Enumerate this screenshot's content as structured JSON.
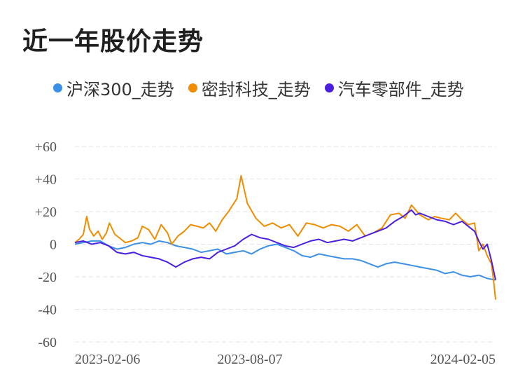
{
  "title": "近一年股价走势",
  "chart_data": {
    "type": "line",
    "title": "近一年股价走势",
    "xlabel": "",
    "ylabel": "",
    "ylim": [
      -60,
      60
    ],
    "yticks": [
      60,
      40,
      20,
      0,
      -20,
      -40,
      -60
    ],
    "ytick_labels": [
      "+60",
      "+40",
      "+20",
      "0",
      "-20",
      "-40",
      "-60"
    ],
    "xlim": [
      0,
      100
    ],
    "xtick_positions": [
      0,
      41.6,
      100
    ],
    "xtick_labels": [
      "2023-02-06",
      "2023-08-07",
      "2024-02-05"
    ],
    "grid": true,
    "legend_position": "top",
    "series": [
      {
        "name": "沪深300_走势",
        "color": "#3b8fe6",
        "x": [
          0,
          2,
          4,
          6,
          8,
          10,
          12,
          14,
          16,
          18,
          20,
          22,
          24,
          26,
          28,
          30,
          32,
          34,
          36,
          38,
          40,
          42,
          44,
          46,
          48,
          50,
          52,
          54,
          56,
          58,
          60,
          62,
          64,
          66,
          68,
          70,
          72,
          74,
          76,
          78,
          80,
          82,
          84,
          86,
          88,
          90,
          92,
          94,
          96,
          98,
          100
        ],
        "y": [
          0,
          1,
          2,
          2,
          -1,
          -3,
          -2,
          0,
          1,
          0,
          2,
          1,
          -1,
          -2,
          -3,
          -5,
          -4,
          -3,
          -6,
          -5,
          -4,
          -6,
          -3,
          -1,
          0,
          -2,
          -4,
          -7,
          -8,
          -6,
          -7,
          -8,
          -9,
          -9,
          -10,
          -12,
          -14,
          -12,
          -11,
          -12,
          -13,
          -14,
          -15,
          -16,
          -18,
          -17,
          -19,
          -20,
          -19,
          -21,
          -22
        ]
      },
      {
        "name": "密封科技_走势",
        "color": "#f08c00",
        "x": [
          0,
          1,
          2,
          2.8,
          3.5,
          4.5,
          5.5,
          6.5,
          7.5,
          8.2,
          9.5,
          11,
          12,
          13.5,
          15,
          16,
          17.5,
          19,
          20.5,
          22,
          23,
          24.5,
          26,
          27.5,
          29,
          30.5,
          32,
          33.5,
          35,
          36.5,
          37.5,
          38.5,
          39.5,
          41,
          43,
          45,
          47,
          49,
          51,
          53,
          55,
          57,
          59,
          61,
          63,
          65,
          67,
          69,
          71,
          73,
          75,
          77,
          78.5,
          80,
          82,
          84,
          85.5,
          87,
          89,
          90.5,
          92,
          93.5,
          95,
          96,
          97,
          98,
          99,
          99.5,
          100
        ],
        "y": [
          1,
          3,
          6,
          17,
          9,
          5,
          8,
          3,
          7,
          13,
          6,
          3,
          1,
          2,
          4,
          11,
          9,
          3,
          12,
          7,
          0,
          5,
          8,
          12,
          11,
          10,
          13,
          8,
          15,
          20,
          24,
          28,
          42,
          25,
          16,
          11,
          13,
          10,
          12,
          5,
          13,
          12,
          10,
          12,
          11,
          8,
          12,
          5,
          7,
          10,
          18,
          19,
          16,
          24,
          18,
          15,
          17,
          16,
          15,
          19,
          15,
          12,
          13,
          -4,
          0,
          -7,
          -12,
          -22,
          -34
        ]
      },
      {
        "name": "汽车零部件_走势",
        "color": "#4a1fe0",
        "x": [
          0,
          2,
          4,
          6,
          8,
          10,
          12,
          14,
          16,
          18,
          20,
          22,
          24,
          26,
          28,
          30,
          32,
          34,
          36,
          38,
          40,
          42,
          44,
          46,
          48,
          50,
          52,
          54,
          56,
          58,
          60,
          62,
          64,
          66,
          68,
          70,
          72,
          74,
          76,
          78,
          80,
          81,
          82,
          84,
          86,
          88,
          90,
          92,
          94,
          95,
          96,
          97,
          98,
          99,
          100
        ],
        "y": [
          1,
          2,
          0,
          1,
          -1,
          -5,
          -6,
          -5,
          -7,
          -8,
          -9,
          -11,
          -14,
          -11,
          -9,
          -8,
          -9,
          -5,
          -3,
          -1,
          3,
          6,
          4,
          3,
          1,
          -1,
          -2,
          0,
          2,
          3,
          1,
          2,
          3,
          2,
          4,
          6,
          8,
          10,
          14,
          17,
          21,
          18,
          19,
          17,
          15,
          14,
          12,
          14,
          10,
          8,
          2,
          -3,
          0,
          -10,
          -22
        ]
      }
    ]
  }
}
